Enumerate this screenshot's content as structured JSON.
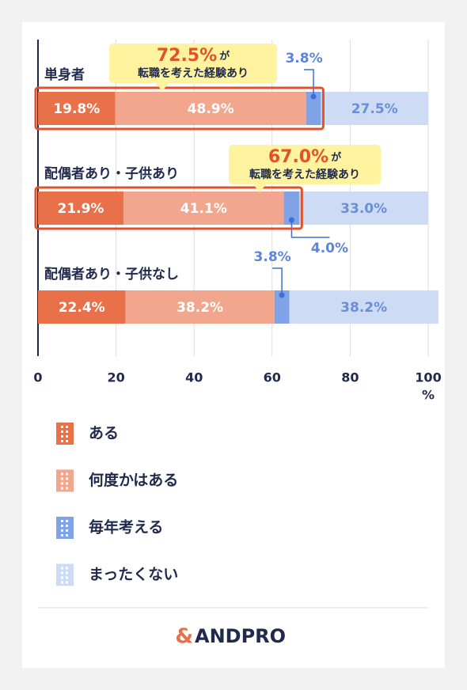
{
  "chart_data": {
    "type": "stacked-hbar",
    "categories": [
      "単身者",
      "配偶者あり・子供あり",
      "配偶者あり・子供なし"
    ],
    "series": [
      {
        "name": "ある",
        "color": "#e8714a",
        "values": [
          19.8,
          21.9,
          22.4
        ],
        "value_labels": [
          "19.8%",
          "21.9%",
          "22.4%"
        ]
      },
      {
        "name": "何度かはある",
        "color": "#f2a68e",
        "values": [
          48.9,
          41.1,
          38.2
        ],
        "value_labels": [
          "48.9%",
          "41.1%",
          "38.2%"
        ]
      },
      {
        "name": "毎年考える",
        "color": "#7fa3e6",
        "values": [
          3.8,
          4.0,
          3.8
        ],
        "value_labels": [
          "3.8%",
          "4.0%",
          "3.8%"
        ]
      },
      {
        "name": "まったくない",
        "color": "#cddcf4",
        "values": [
          27.5,
          33.0,
          38.2
        ],
        "value_labels": [
          "27.5%",
          "33.0%",
          "38.2%"
        ]
      }
    ],
    "annotations": [
      {
        "value": 72.5,
        "label": "72.5%",
        "suffix": "が",
        "text": "転職を考えた経験あり"
      },
      {
        "value": 67.0,
        "label": "67.0%",
        "suffix": "が",
        "text": "転職を考えた経験あり"
      }
    ],
    "xlim": [
      0,
      100
    ],
    "xticks": [
      0,
      20,
      40,
      60,
      80,
      100
    ],
    "x_label": "%",
    "grid": true,
    "logo_mark": "&",
    "logo": "ANDPRO"
  }
}
